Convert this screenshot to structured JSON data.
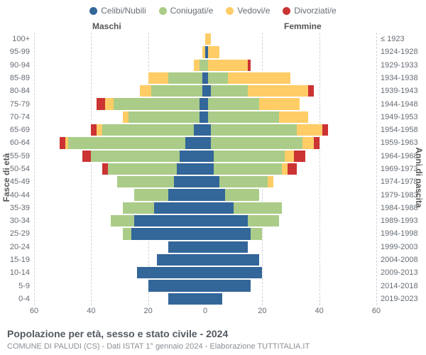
{
  "legend": [
    {
      "label": "Celibi/Nubili",
      "color": "#336699"
    },
    {
      "label": "Coniugati/e",
      "color": "#aacc88"
    },
    {
      "label": "Vedovi/e",
      "color": "#ffcc66"
    },
    {
      "label": "Divorziati/e",
      "color": "#cc3333"
    }
  ],
  "gender": {
    "male": "Maschi",
    "female": "Femmine"
  },
  "axis_titles": {
    "left": "Fasce di età",
    "right": "Anni di nascita"
  },
  "title": "Popolazione per età, sesso e stato civile - 2024",
  "subtitle": "COMUNE DI PALUDI (CS) - Dati ISTAT 1° gennaio 2024 - Elaborazione TUTTITALIA.IT",
  "xmax": 60,
  "xticks": [
    60,
    40,
    20,
    0,
    20,
    40,
    60
  ],
  "age_labels": [
    "0-4",
    "5-9",
    "10-14",
    "15-19",
    "20-24",
    "25-29",
    "30-34",
    "35-39",
    "40-44",
    "45-49",
    "50-54",
    "55-59",
    "60-64",
    "65-69",
    "70-74",
    "75-79",
    "80-84",
    "85-89",
    "90-94",
    "95-99",
    "100+"
  ],
  "birth_labels": [
    "2019-2023",
    "2014-2018",
    "2009-2013",
    "2004-2008",
    "1999-2003",
    "1994-1998",
    "1989-1993",
    "1984-1988",
    "1979-1983",
    "1974-1978",
    "1969-1973",
    "1964-1968",
    "1959-1963",
    "1954-1958",
    "1949-1953",
    "1944-1948",
    "1939-1943",
    "1934-1938",
    "1929-1933",
    "1924-1928",
    "≤ 1923"
  ],
  "colors": {
    "single": "#336699",
    "married": "#aacc88",
    "widowed": "#ffcc66",
    "divorced": "#cc3333"
  },
  "style": {
    "background": "#ffffff",
    "grid_color": "#cfd3d8",
    "center_color": "#b6c6da",
    "font_family": "Arial, sans-serif",
    "label_color": "#666d75",
    "title_color": "#525960",
    "subtitle_color": "#8a8f95"
  },
  "rows": [
    {
      "age": "0-4",
      "m": {
        "s": 13,
        "c": 0,
        "w": 0,
        "d": 0
      },
      "f": {
        "s": 6,
        "c": 0,
        "w": 0,
        "d": 0
      }
    },
    {
      "age": "5-9",
      "m": {
        "s": 20,
        "c": 0,
        "w": 0,
        "d": 0
      },
      "f": {
        "s": 16,
        "c": 0,
        "w": 0,
        "d": 0
      }
    },
    {
      "age": "10-14",
      "m": {
        "s": 24,
        "c": 0,
        "w": 0,
        "d": 0
      },
      "f": {
        "s": 20,
        "c": 0,
        "w": 0,
        "d": 0
      }
    },
    {
      "age": "15-19",
      "m": {
        "s": 17,
        "c": 0,
        "w": 0,
        "d": 0
      },
      "f": {
        "s": 19,
        "c": 0,
        "w": 0,
        "d": 0
      }
    },
    {
      "age": "20-24",
      "m": {
        "s": 13,
        "c": 0,
        "w": 0,
        "d": 0
      },
      "f": {
        "s": 15,
        "c": 0,
        "w": 0,
        "d": 0
      }
    },
    {
      "age": "25-29",
      "m": {
        "s": 26,
        "c": 3,
        "w": 0,
        "d": 0
      },
      "f": {
        "s": 16,
        "c": 4,
        "w": 0,
        "d": 0
      }
    },
    {
      "age": "30-34",
      "m": {
        "s": 25,
        "c": 8,
        "w": 0,
        "d": 0
      },
      "f": {
        "s": 15,
        "c": 11,
        "w": 0,
        "d": 0
      }
    },
    {
      "age": "35-39",
      "m": {
        "s": 18,
        "c": 11,
        "w": 0,
        "d": 0
      },
      "f": {
        "s": 10,
        "c": 17,
        "w": 0,
        "d": 0
      }
    },
    {
      "age": "40-44",
      "m": {
        "s": 13,
        "c": 12,
        "w": 0,
        "d": 0
      },
      "f": {
        "s": 7,
        "c": 12,
        "w": 0,
        "d": 0
      }
    },
    {
      "age": "45-49",
      "m": {
        "s": 11,
        "c": 20,
        "w": 0,
        "d": 0
      },
      "f": {
        "s": 5,
        "c": 17,
        "w": 2,
        "d": 0
      }
    },
    {
      "age": "50-54",
      "m": {
        "s": 10,
        "c": 24,
        "w": 0,
        "d": 2
      },
      "f": {
        "s": 3,
        "c": 24,
        "w": 2,
        "d": 3
      }
    },
    {
      "age": "55-59",
      "m": {
        "s": 9,
        "c": 31,
        "w": 0,
        "d": 3
      },
      "f": {
        "s": 3,
        "c": 25,
        "w": 3,
        "d": 4
      }
    },
    {
      "age": "60-64",
      "m": {
        "s": 7,
        "c": 41,
        "w": 1,
        "d": 2
      },
      "f": {
        "s": 2,
        "c": 32,
        "w": 4,
        "d": 2
      }
    },
    {
      "age": "65-69",
      "m": {
        "s": 4,
        "c": 32,
        "w": 2,
        "d": 2
      },
      "f": {
        "s": 2,
        "c": 30,
        "w": 9,
        "d": 2
      }
    },
    {
      "age": "70-74",
      "m": {
        "s": 2,
        "c": 25,
        "w": 2,
        "d": 0
      },
      "f": {
        "s": 1,
        "c": 25,
        "w": 10,
        "d": 0
      }
    },
    {
      "age": "75-79",
      "m": {
        "s": 2,
        "c": 30,
        "w": 3,
        "d": 3
      },
      "f": {
        "s": 1,
        "c": 18,
        "w": 14,
        "d": 0
      }
    },
    {
      "age": "80-84",
      "m": {
        "s": 1,
        "c": 18,
        "w": 4,
        "d": 0
      },
      "f": {
        "s": 2,
        "c": 13,
        "w": 21,
        "d": 2
      }
    },
    {
      "age": "85-89",
      "m": {
        "s": 1,
        "c": 12,
        "w": 7,
        "d": 0
      },
      "f": {
        "s": 1,
        "c": 7,
        "w": 22,
        "d": 0
      }
    },
    {
      "age": "90-94",
      "m": {
        "s": 0,
        "c": 2,
        "w": 2,
        "d": 0
      },
      "f": {
        "s": 0,
        "c": 1,
        "w": 14,
        "d": 1
      }
    },
    {
      "age": "95-99",
      "m": {
        "s": 0,
        "c": 0,
        "w": 1,
        "d": 0
      },
      "f": {
        "s": 1,
        "c": 0,
        "w": 4,
        "d": 0
      }
    },
    {
      "age": "100+",
      "m": {
        "s": 0,
        "c": 0,
        "w": 0,
        "d": 0
      },
      "f": {
        "s": 0,
        "c": 0,
        "w": 2,
        "d": 0
      }
    }
  ]
}
